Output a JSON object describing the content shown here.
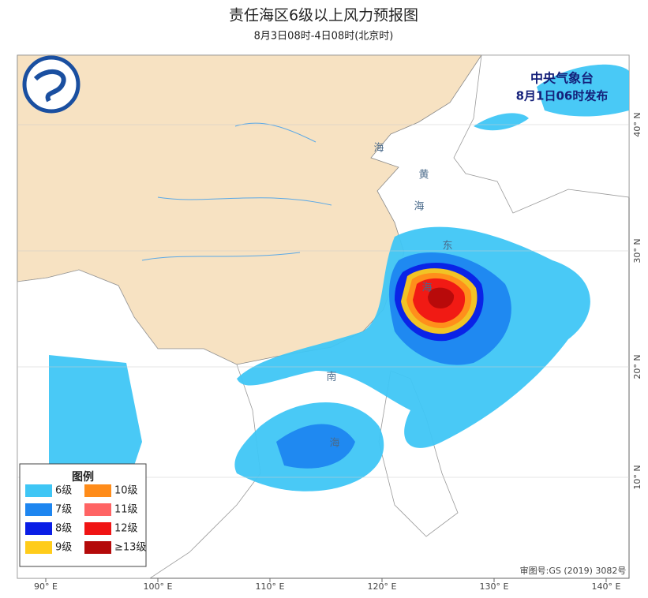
{
  "header": {
    "title": "责任海区6级以上风力预报图",
    "subtitle": "8月3日08时-4日08时(北京时)"
  },
  "issuer": {
    "agency": "中央气象台",
    "issued": "8月1日06时发布"
  },
  "legend": {
    "title": "图例",
    "items": [
      {
        "label": "6级",
        "color": "#3fc6f5"
      },
      {
        "label": "7级",
        "color": "#1e86f0"
      },
      {
        "label": "8级",
        "color": "#0a1ee6"
      },
      {
        "label": "9级",
        "color": "#ffcc1a"
      },
      {
        "label": "10级",
        "color": "#ff8c1a"
      },
      {
        "label": "11级",
        "color": "#ff6464"
      },
      {
        "label": "12级",
        "color": "#f01414"
      },
      {
        "label": "≥13级",
        "color": "#b40a0a"
      }
    ]
  },
  "longitude_labels": [
    "90° E",
    "100° E",
    "110° E",
    "120° E",
    "130° E",
    "140° E"
  ],
  "latitude_labels": [
    "40° N",
    "30° N",
    "20° N",
    "10° N"
  ],
  "sea_labels": [
    "海",
    "黄",
    "海",
    "东",
    "海",
    "南",
    "海"
  ],
  "review_number": "审图号:GS (2019) 3082号"
}
